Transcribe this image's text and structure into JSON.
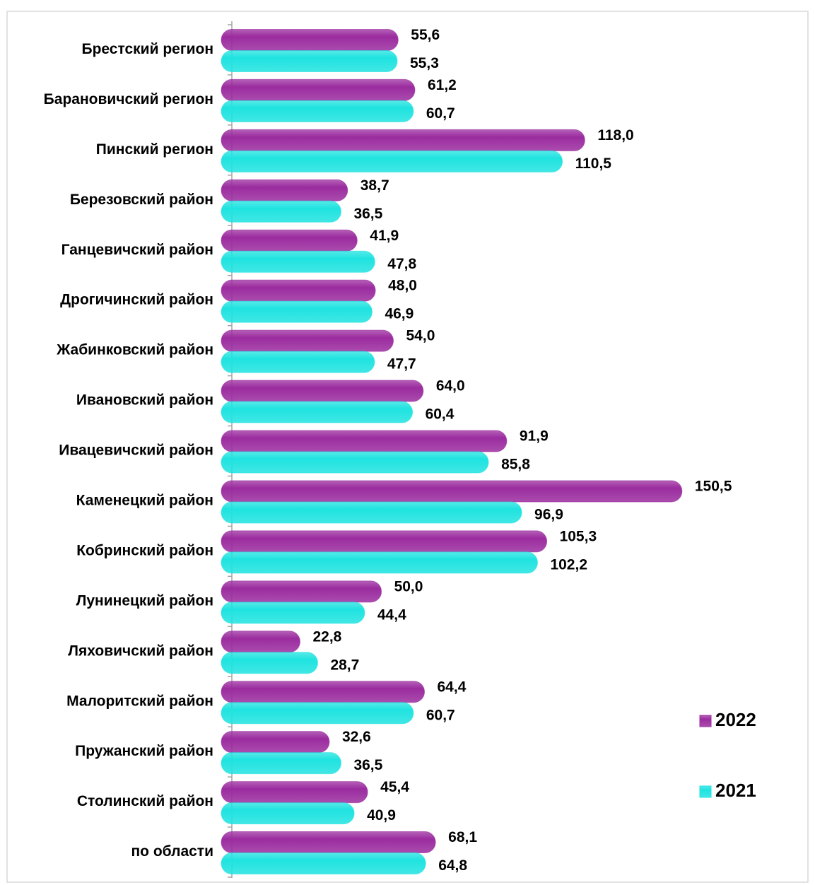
{
  "chart_data": {
    "type": "bar",
    "orientation": "horizontal",
    "categories": [
      "Брестский регион",
      "Барановичский регион",
      "Пинский регион",
      "Березовский район",
      "Ганцевичский район",
      "Дрогичинский район",
      "Жабинковский район",
      "Ивановский район",
      "Ивацевичский район",
      "Каменецкий район",
      "Кобринский район",
      "Лунинецкий район",
      "Ляховичский район",
      "Малоритский район",
      "Пружанский район",
      "Столинский район",
      "по области"
    ],
    "series": [
      {
        "name": "2022",
        "color": "#9b2c9f",
        "values": [
          55.6,
          61.2,
          118.0,
          38.7,
          41.9,
          48.0,
          54.0,
          64.0,
          91.9,
          150.5,
          105.3,
          50.0,
          22.8,
          64.4,
          32.6,
          45.4,
          68.1
        ],
        "value_labels": [
          "55,6",
          "61,2",
          "118,0",
          "38,7",
          "41,9",
          "48,0",
          "54,0",
          "64,0",
          "91,9",
          "150,5",
          "105,3",
          "50,0",
          "22,8",
          "64,4",
          "32,6",
          "45,4",
          "68,1"
        ]
      },
      {
        "name": "2021",
        "color": "#1fe3e0",
        "values": [
          55.3,
          60.7,
          110.5,
          36.5,
          47.8,
          46.9,
          47.7,
          60.4,
          85.8,
          96.9,
          102.2,
          44.4,
          28.7,
          60.7,
          36.5,
          40.9,
          64.8
        ],
        "value_labels": [
          "55,3",
          "60,7",
          "110,5",
          "36,5",
          "47,8",
          "46,9",
          "47,7",
          "60,4",
          "85,8",
          "96,9",
          "102,2",
          "44,4",
          "28,7",
          "60,7",
          "36,5",
          "40,9",
          "64,8"
        ]
      }
    ],
    "xlim": [
      0,
      190
    ],
    "grid": false,
    "legend": "right"
  }
}
